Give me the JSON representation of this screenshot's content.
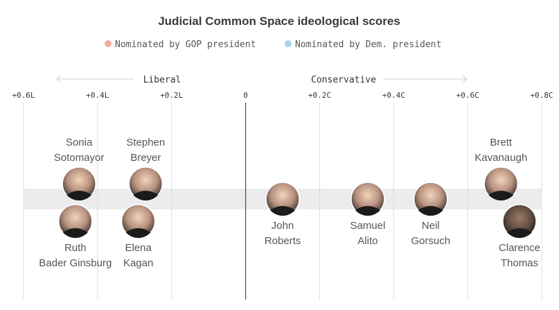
{
  "chart_data": {
    "type": "scatter",
    "title": "Judicial Common Space ideological scores",
    "legend": [
      {
        "label": "Nominated by GOP president",
        "color": "#f2aaa0"
      },
      {
        "label": "Nominated by Dem. president",
        "color": "#a8d3ee"
      }
    ],
    "direction_labels": {
      "liberal": "Liberal",
      "conservative": "Conservative"
    },
    "xlim": [
      -0.6,
      0.8
    ],
    "ticks": [
      {
        "value": -0.6,
        "label": "+0.6L"
      },
      {
        "value": -0.4,
        "label": "+0.4L"
      },
      {
        "value": -0.2,
        "label": "+0.2L"
      },
      {
        "value": 0,
        "label": "0"
      },
      {
        "value": 0.2,
        "label": "+0.2C"
      },
      {
        "value": 0.4,
        "label": "+0.4C"
      },
      {
        "value": 0.6,
        "label": "+0.6C"
      },
      {
        "value": 0.8,
        "label": "+0.8C"
      }
    ],
    "justices": [
      {
        "id": "sotomayor",
        "name_lines": [
          "Sonia",
          "Sotomayor"
        ],
        "score": -0.45,
        "party": "Dem",
        "placement": "upper",
        "label_position": "above"
      },
      {
        "id": "ginsburg",
        "name_lines": [
          "Ruth",
          "Bader Ginsburg"
        ],
        "score": -0.46,
        "party": "Dem",
        "placement": "lower",
        "label_position": "below"
      },
      {
        "id": "breyer",
        "name_lines": [
          "Stephen",
          "Breyer"
        ],
        "score": -0.27,
        "party": "Dem",
        "placement": "upper",
        "label_position": "above"
      },
      {
        "id": "kagan",
        "name_lines": [
          "Elena",
          "Kagan"
        ],
        "score": -0.29,
        "party": "Dem",
        "placement": "lower",
        "label_position": "below"
      },
      {
        "id": "roberts",
        "name_lines": [
          "John",
          "Roberts"
        ],
        "score": 0.1,
        "party": "GOP",
        "placement": "center",
        "label_position": "below"
      },
      {
        "id": "alito",
        "name_lines": [
          "Samuel",
          "Alito"
        ],
        "score": 0.33,
        "party": "GOP",
        "placement": "center",
        "label_position": "below"
      },
      {
        "id": "gorsuch",
        "name_lines": [
          "Neil",
          "Gorsuch"
        ],
        "score": 0.5,
        "party": "GOP",
        "placement": "center",
        "label_position": "below"
      },
      {
        "id": "kavanaugh",
        "name_lines": [
          "Brett",
          "Kavanaugh"
        ],
        "score": 0.69,
        "party": "GOP",
        "placement": "upper",
        "label_position": "above"
      },
      {
        "id": "thomas",
        "name_lines": [
          "Clarence",
          "Thomas"
        ],
        "score": 0.74,
        "party": "GOP",
        "placement": "lower",
        "label_position": "below"
      }
    ]
  }
}
